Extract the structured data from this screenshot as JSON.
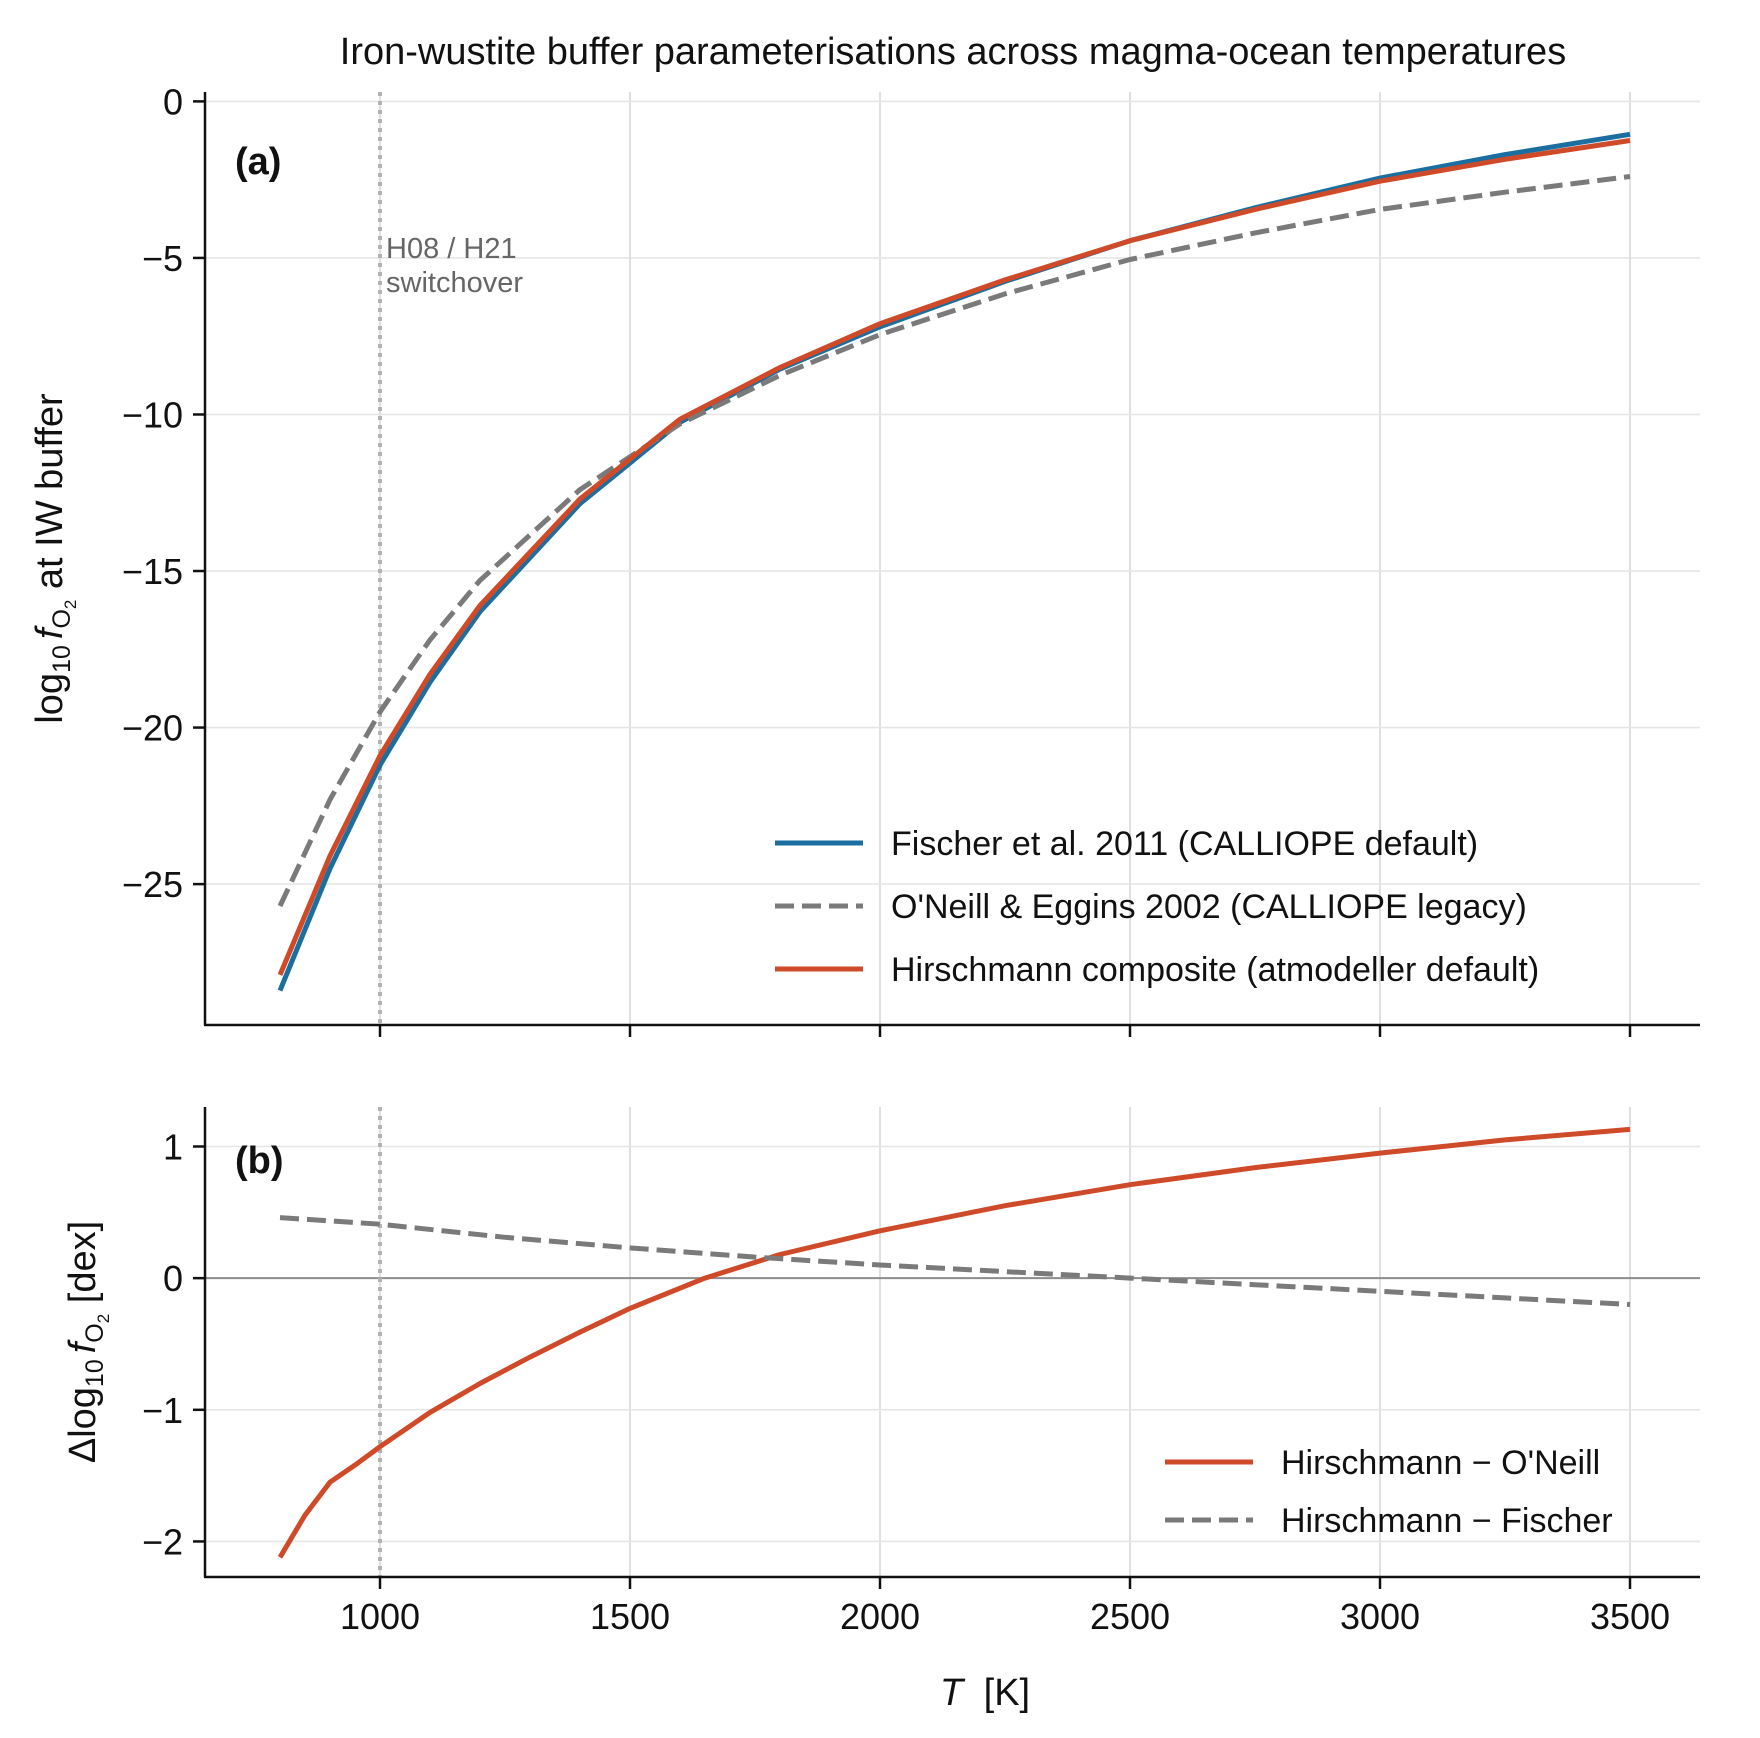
{
  "figure_title": "Iron-wustite buffer parameterisations across magma-ocean temperatures",
  "xlabel": {
    "var": "T",
    "unit": "[K]"
  },
  "vline_x": 1000,
  "colors": {
    "fischer": "#1a6fa0",
    "oneill": "#7a7a7a",
    "hirschmann": "#cf4a28",
    "vline": "#b3b3b3",
    "zero": "#8c8c8c",
    "grid": "#e6e6e6",
    "text": "#111111"
  },
  "chart_data": [
    {
      "id": "a",
      "type": "line",
      "panel_label": "(a)",
      "ylabel": {
        "pre": "log",
        "sub1": "10",
        "var": "f",
        "sub2": "O",
        "sub3": "2",
        "post": " at IW buffer"
      },
      "xlim": [
        650,
        3640
      ],
      "ylim": [
        -29.5,
        0.3
      ],
      "xticks": [
        1000,
        1500,
        2000,
        2500,
        3000,
        3500
      ],
      "yticks": [
        0,
        -5,
        -10,
        -15,
        -20,
        -25
      ],
      "ytick_labels": [
        "0",
        "−5",
        "−10",
        "−15",
        "−20",
        "−25"
      ],
      "grid": true,
      "legend": "lower-right",
      "annotation": [
        "H08 / H21",
        "switchover"
      ],
      "series": [
        {
          "name": "Fischer et al. 2011 (CALLIOPE default)",
          "style": "solid",
          "color": "#1a6fa0",
          "x": [
            800,
            900,
            1000,
            1100,
            1200,
            1400,
            1600,
            1800,
            2000,
            2250,
            2500,
            2750,
            3000,
            3250,
            3500
          ],
          "y": [
            -28.4,
            -24.5,
            -21.2,
            -18.55,
            -16.3,
            -12.85,
            -10.25,
            -8.55,
            -7.2,
            -5.75,
            -4.45,
            -3.4,
            -2.45,
            -1.7,
            -1.05
          ]
        },
        {
          "name": "O'Neill & Eggins 2002 (CALLIOPE legacy)",
          "style": "dashed",
          "color": "#7a7a7a",
          "x": [
            800,
            900,
            1000,
            1100,
            1200,
            1400,
            1600,
            1800,
            2000,
            2250,
            2500,
            2750,
            3000,
            3250,
            3500
          ],
          "y": [
            -25.7,
            -22.3,
            -19.5,
            -17.2,
            -15.3,
            -12.4,
            -10.3,
            -8.75,
            -7.45,
            -6.15,
            -5.05,
            -4.2,
            -3.45,
            -2.9,
            -2.4
          ]
        },
        {
          "name": "Hirschmann composite (atmodeller default)",
          "style": "solid",
          "color": "#cf4a28",
          "x": [
            800,
            900,
            1000,
            1100,
            1200,
            1400,
            1600,
            1800,
            2000,
            2250,
            2500,
            2750,
            3000,
            3250,
            3500
          ],
          "y": [
            -27.9,
            -24.1,
            -20.9,
            -18.3,
            -16.1,
            -12.7,
            -10.15,
            -8.5,
            -7.1,
            -5.7,
            -4.45,
            -3.45,
            -2.55,
            -1.85,
            -1.25
          ]
        }
      ]
    },
    {
      "id": "b",
      "type": "line",
      "panel_label": "(b)",
      "ylabel": {
        "pre": "Δlog",
        "sub1": "10",
        "var": "f",
        "sub2": "O",
        "sub3": "2",
        "post": " [dex]"
      },
      "xlim": [
        650,
        3640
      ],
      "ylim": [
        -2.27,
        1.3
      ],
      "xticks": [
        1000,
        1500,
        2000,
        2500,
        3000,
        3500
      ],
      "xtick_labels": [
        "1000",
        "1500",
        "2000",
        "2500",
        "3000",
        "3500"
      ],
      "yticks": [
        1,
        0,
        -1,
        -2
      ],
      "ytick_labels": [
        "1",
        "0",
        "−1",
        "−2"
      ],
      "grid": true,
      "legend": "lower-right",
      "series": [
        {
          "name": "Hirschmann − O'Neill",
          "style": "solid",
          "color": "#cf4a28",
          "x": [
            800,
            850,
            900,
            950,
            1000,
            1100,
            1200,
            1300,
            1400,
            1500,
            1650,
            1800,
            2000,
            2250,
            2500,
            2750,
            3000,
            3250,
            3500
          ],
          "y": [
            -2.12,
            -1.8,
            -1.55,
            -1.42,
            -1.28,
            -1.02,
            -0.8,
            -0.6,
            -0.41,
            -0.23,
            0.0,
            0.18,
            0.36,
            0.55,
            0.71,
            0.84,
            0.95,
            1.05,
            1.13
          ]
        },
        {
          "name": "Hirschmann − Fischer",
          "style": "dashed",
          "color": "#7a7a7a",
          "x": [
            800,
            1000,
            1250,
            1500,
            1750,
            2000,
            2250,
            2500,
            2750,
            3000,
            3250,
            3500
          ],
          "y": [
            0.46,
            0.41,
            0.31,
            0.23,
            0.16,
            0.1,
            0.05,
            0.0,
            -0.05,
            -0.1,
            -0.15,
            -0.2
          ]
        }
      ]
    }
  ]
}
